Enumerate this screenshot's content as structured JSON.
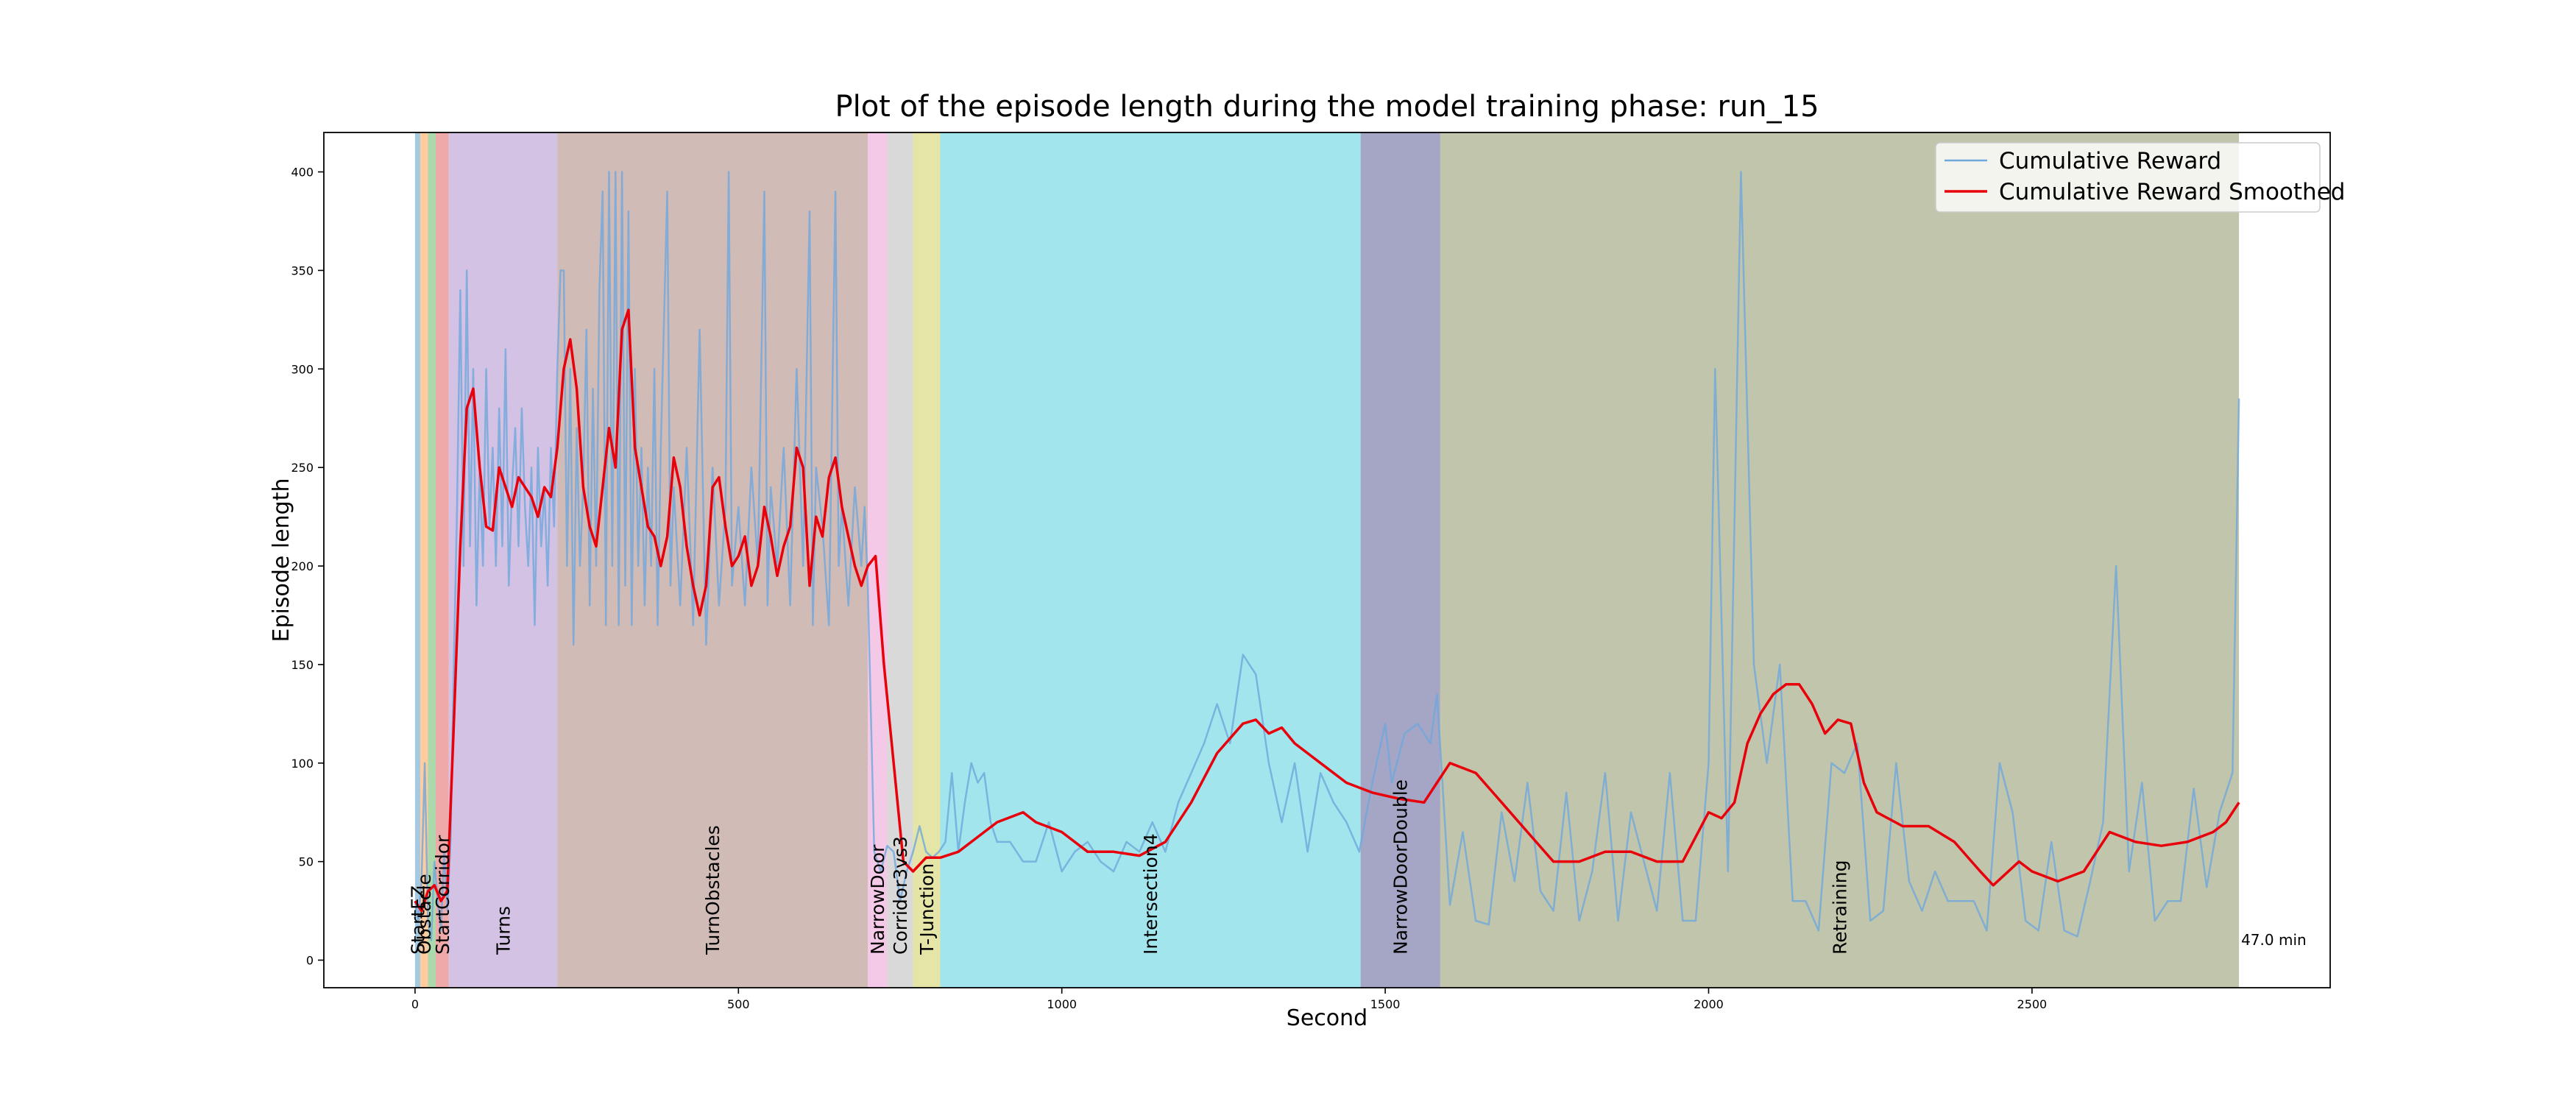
{
  "chart_data": {
    "type": "line",
    "title": "Plot of the episode length during the model training phase: run_15",
    "xlabel": "Second",
    "ylabel": "Episode length",
    "xlim": [
      -141,
      2961
    ],
    "ylim": [
      -14,
      420
    ],
    "xticks": [
      0,
      500,
      1000,
      1500,
      2000,
      2500
    ],
    "yticks": [
      0,
      50,
      100,
      150,
      200,
      250,
      300,
      350,
      400
    ],
    "legend": "upper right",
    "annotation": "47.0 min",
    "regions": [
      {
        "label": "StartEZ",
        "start": 0,
        "end": 8,
        "color": "#1f77b4"
      },
      {
        "label": "Obstacle",
        "start": 8,
        "end": 20,
        "color": "#ff7f0e"
      },
      {
        "label": null,
        "start": 20,
        "end": 32,
        "color": "#2ca02c"
      },
      {
        "label": "StartCorridor",
        "start": 32,
        "end": 52,
        "color": "#d62728"
      },
      {
        "label": "Turns",
        "start": 52,
        "end": 220,
        "color": "#9467bd"
      },
      {
        "label": "TurnObstacles",
        "start": 220,
        "end": 700,
        "color": "#8c564b"
      },
      {
        "label": "NarrowDoor",
        "start": 700,
        "end": 730,
        "color": "#e377c2"
      },
      {
        "label": "Corridor3vs3",
        "start": 730,
        "end": 770,
        "color": "#a0a0a0"
      },
      {
        "label": "T-Junction",
        "start": 770,
        "end": 812,
        "color": "#bcbd22"
      },
      {
        "label": "Intersection4",
        "start": 812,
        "end": 1462,
        "color": "#17becf"
      },
      {
        "label": "NarrowDoorDouble",
        "start": 1462,
        "end": 1585,
        "color": "#1f1f6e"
      },
      {
        "label": "Retraining",
        "start": 1585,
        "end": 2820,
        "color": "#636e2c"
      }
    ],
    "series": [
      {
        "name": "Cumulative Reward",
        "color": "#6fa8dc",
        "x": [
          0,
          5,
          10,
          15,
          20,
          25,
          30,
          35,
          40,
          45,
          50,
          55,
          60,
          65,
          70,
          75,
          80,
          85,
          90,
          95,
          100,
          105,
          110,
          115,
          120,
          125,
          130,
          135,
          140,
          145,
          150,
          155,
          160,
          165,
          170,
          175,
          180,
          185,
          190,
          195,
          200,
          205,
          210,
          215,
          220,
          225,
          230,
          235,
          240,
          245,
          250,
          255,
          260,
          265,
          270,
          275,
          280,
          285,
          290,
          295,
          300,
          305,
          310,
          315,
          320,
          325,
          330,
          335,
          340,
          345,
          350,
          355,
          360,
          365,
          370,
          375,
          380,
          390,
          395,
          400,
          410,
          420,
          430,
          440,
          450,
          460,
          470,
          480,
          485,
          490,
          500,
          510,
          520,
          530,
          540,
          545,
          550,
          560,
          570,
          580,
          590,
          600,
          610,
          615,
          620,
          630,
          640,
          650,
          655,
          660,
          670,
          680,
          690,
          695,
          700,
          710,
          720,
          730,
          740,
          750,
          760,
          770,
          780,
          790,
          800,
          810,
          820,
          830,
          840,
          850,
          860,
          870,
          880,
          890,
          900,
          920,
          940,
          960,
          980,
          1000,
          1020,
          1040,
          1060,
          1080,
          1100,
          1120,
          1140,
          1160,
          1180,
          1200,
          1220,
          1240,
          1260,
          1280,
          1300,
          1320,
          1340,
          1360,
          1380,
          1400,
          1420,
          1440,
          1460,
          1480,
          1500,
          1510,
          1530,
          1550,
          1570,
          1580,
          1600,
          1620,
          1640,
          1660,
          1680,
          1700,
          1720,
          1740,
          1760,
          1780,
          1800,
          1820,
          1840,
          1860,
          1880,
          1900,
          1920,
          1940,
          1960,
          1980,
          2000,
          2010,
          2030,
          2050,
          2070,
          2090,
          2110,
          2130,
          2150,
          2170,
          2190,
          2210,
          2230,
          2250,
          2270,
          2290,
          2310,
          2330,
          2350,
          2370,
          2390,
          2410,
          2430,
          2450,
          2470,
          2490,
          2510,
          2530,
          2550,
          2570,
          2590,
          2610,
          2630,
          2650,
          2670,
          2690,
          2710,
          2730,
          2750,
          2770,
          2790,
          2810,
          2820
        ],
        "values": [
          30,
          20,
          40,
          100,
          20,
          10,
          50,
          30,
          15,
          55,
          25,
          60,
          150,
          230,
          340,
          200,
          350,
          210,
          300,
          180,
          250,
          200,
          300,
          220,
          260,
          200,
          280,
          210,
          310,
          190,
          240,
          270,
          210,
          280,
          230,
          200,
          250,
          170,
          260,
          210,
          240,
          190,
          260,
          220,
          300,
          350,
          350,
          200,
          300,
          160,
          270,
          200,
          240,
          320,
          180,
          290,
          200,
          340,
          390,
          170,
          400,
          200,
          400,
          170,
          400,
          190,
          380,
          170,
          300,
          200,
          260,
          180,
          250,
          200,
          300,
          170,
          260,
          390,
          190,
          240,
          180,
          260,
          170,
          320,
          160,
          250,
          180,
          230,
          400,
          190,
          230,
          180,
          250,
          200,
          390,
          180,
          240,
          200,
          260,
          180,
          300,
          200,
          380,
          170,
          250,
          220,
          170,
          390,
          200,
          230,
          180,
          240,
          200,
          230,
          190,
          55,
          45,
          58,
          55,
          30,
          45,
          55,
          68,
          55,
          52,
          55,
          60,
          95,
          55,
          80,
          100,
          90,
          95,
          70,
          60,
          60,
          50,
          50,
          70,
          45,
          55,
          60,
          50,
          45,
          60,
          55,
          70,
          55,
          80,
          95,
          110,
          130,
          110,
          155,
          145,
          100,
          70,
          100,
          55,
          95,
          80,
          70,
          55,
          90,
          120,
          90,
          115,
          120,
          110,
          135,
          28,
          65,
          20,
          18,
          75,
          40,
          90,
          35,
          25,
          85,
          20,
          45,
          95,
          20,
          75,
          50,
          25,
          95,
          20,
          20,
          100,
          300,
          45,
          400,
          150,
          100,
          150,
          30,
          30,
          15,
          100,
          95,
          110,
          20,
          25,
          100,
          40,
          25,
          45,
          30,
          30,
          30,
          15,
          100,
          75,
          20,
          15,
          60,
          15,
          12,
          40,
          70,
          200,
          45,
          90,
          20,
          30,
          30,
          87,
          37,
          75,
          95,
          285
        ]
      },
      {
        "name": "Cumulative Reward Smoothed",
        "color": "#e8000b",
        "x": [
          0,
          10,
          20,
          30,
          40,
          50,
          60,
          70,
          80,
          90,
          100,
          110,
          120,
          130,
          140,
          150,
          160,
          170,
          180,
          190,
          200,
          210,
          220,
          230,
          240,
          250,
          260,
          270,
          280,
          290,
          300,
          310,
          320,
          330,
          340,
          350,
          360,
          370,
          380,
          390,
          400,
          410,
          420,
          430,
          440,
          450,
          460,
          470,
          480,
          490,
          500,
          510,
          520,
          530,
          540,
          550,
          560,
          570,
          580,
          590,
          600,
          610,
          620,
          630,
          640,
          650,
          660,
          670,
          680,
          690,
          700,
          712,
          725,
          740,
          755,
          770,
          790,
          812,
          840,
          860,
          880,
          900,
          940,
          960,
          1000,
          1040,
          1080,
          1120,
          1160,
          1200,
          1240,
          1280,
          1300,
          1320,
          1340,
          1360,
          1400,
          1440,
          1480,
          1520,
          1560,
          1580,
          1600,
          1640,
          1680,
          1720,
          1760,
          1800,
          1840,
          1880,
          1920,
          1960,
          2000,
          2020,
          2040,
          2060,
          2080,
          2100,
          2120,
          2140,
          2160,
          2180,
          2200,
          2220,
          2240,
          2260,
          2300,
          2340,
          2380,
          2420,
          2440,
          2480,
          2500,
          2540,
          2580,
          2620,
          2660,
          2700,
          2740,
          2780,
          2800,
          2820
        ],
        "values": [
          30,
          25,
          35,
          38,
          30,
          35,
          120,
          210,
          280,
          290,
          250,
          220,
          218,
          250,
          240,
          230,
          245,
          240,
          235,
          225,
          240,
          235,
          260,
          300,
          315,
          290,
          240,
          220,
          210,
          240,
          270,
          250,
          320,
          330,
          260,
          240,
          220,
          215,
          200,
          215,
          255,
          240,
          210,
          190,
          175,
          190,
          240,
          245,
          220,
          200,
          205,
          215,
          190,
          200,
          230,
          215,
          195,
          210,
          220,
          260,
          250,
          190,
          225,
          215,
          245,
          255,
          230,
          215,
          200,
          190,
          200,
          205,
          150,
          100,
          50,
          45,
          52,
          52,
          55,
          60,
          65,
          70,
          75,
          70,
          65,
          55,
          55,
          53,
          60,
          80,
          105,
          120,
          122,
          115,
          118,
          110,
          100,
          90,
          85,
          82,
          80,
          90,
          100,
          95,
          80,
          65,
          50,
          50,
          55,
          55,
          50,
          50,
          75,
          72,
          80,
          110,
          125,
          135,
          140,
          140,
          130,
          115,
          122,
          120,
          90,
          75,
          68,
          68,
          60,
          45,
          38,
          50,
          45,
          40,
          45,
          65,
          60,
          58,
          60,
          65,
          70,
          80
        ]
      }
    ]
  }
}
